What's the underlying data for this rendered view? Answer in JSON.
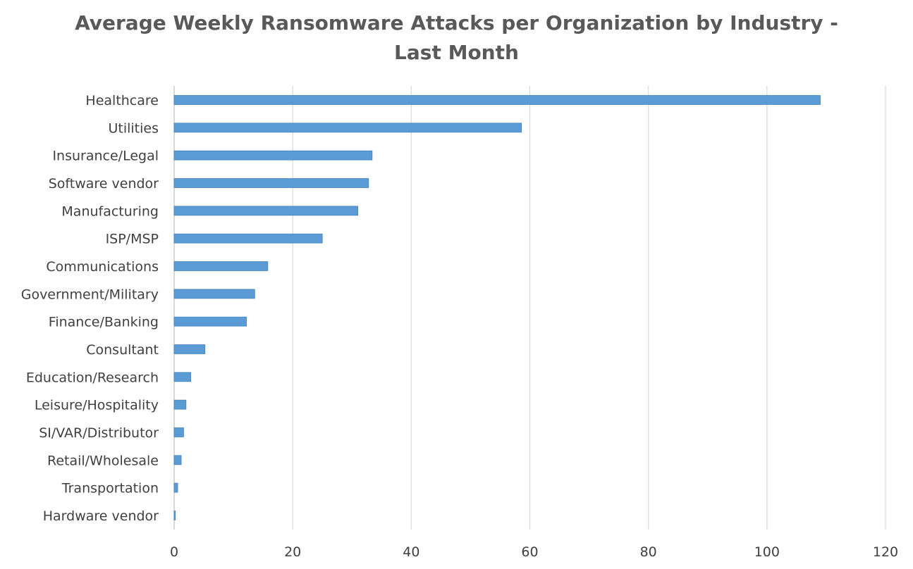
{
  "chart_data": {
    "type": "bar",
    "orientation": "horizontal",
    "title_lines": [
      "Average Weekly Ransomware Attacks per Organization by Industry -",
      "Last Month"
    ],
    "categories": [
      "Healthcare",
      "Utilities",
      "Insurance/Legal",
      "Software vendor",
      "Manufacturing",
      "ISP/MSP",
      "Communications",
      "Government/Military",
      "Finance/Banking",
      "Consultant",
      "Education/Research",
      "Leisure/Hospitality",
      "SI/VAR/Distributor",
      "Retail/Wholesale",
      "Transportation",
      "Hardware vendor"
    ],
    "values": [
      109,
      58.6,
      33.4,
      32.8,
      31,
      25,
      15.8,
      13.6,
      12.2,
      5.2,
      2.8,
      2,
      1.6,
      1.2,
      0.6,
      0.2
    ],
    "xlim": [
      0,
      120
    ],
    "xticks": [
      "0",
      "20",
      "40",
      "60",
      "80",
      "100",
      "120"
    ],
    "grid": true,
    "legend": "none",
    "colors": {
      "bar": "#5b9bd5",
      "bar_edge": "#4a86bf",
      "grid": "#d9d9d9",
      "text": "#404040",
      "title": "#595959"
    }
  }
}
